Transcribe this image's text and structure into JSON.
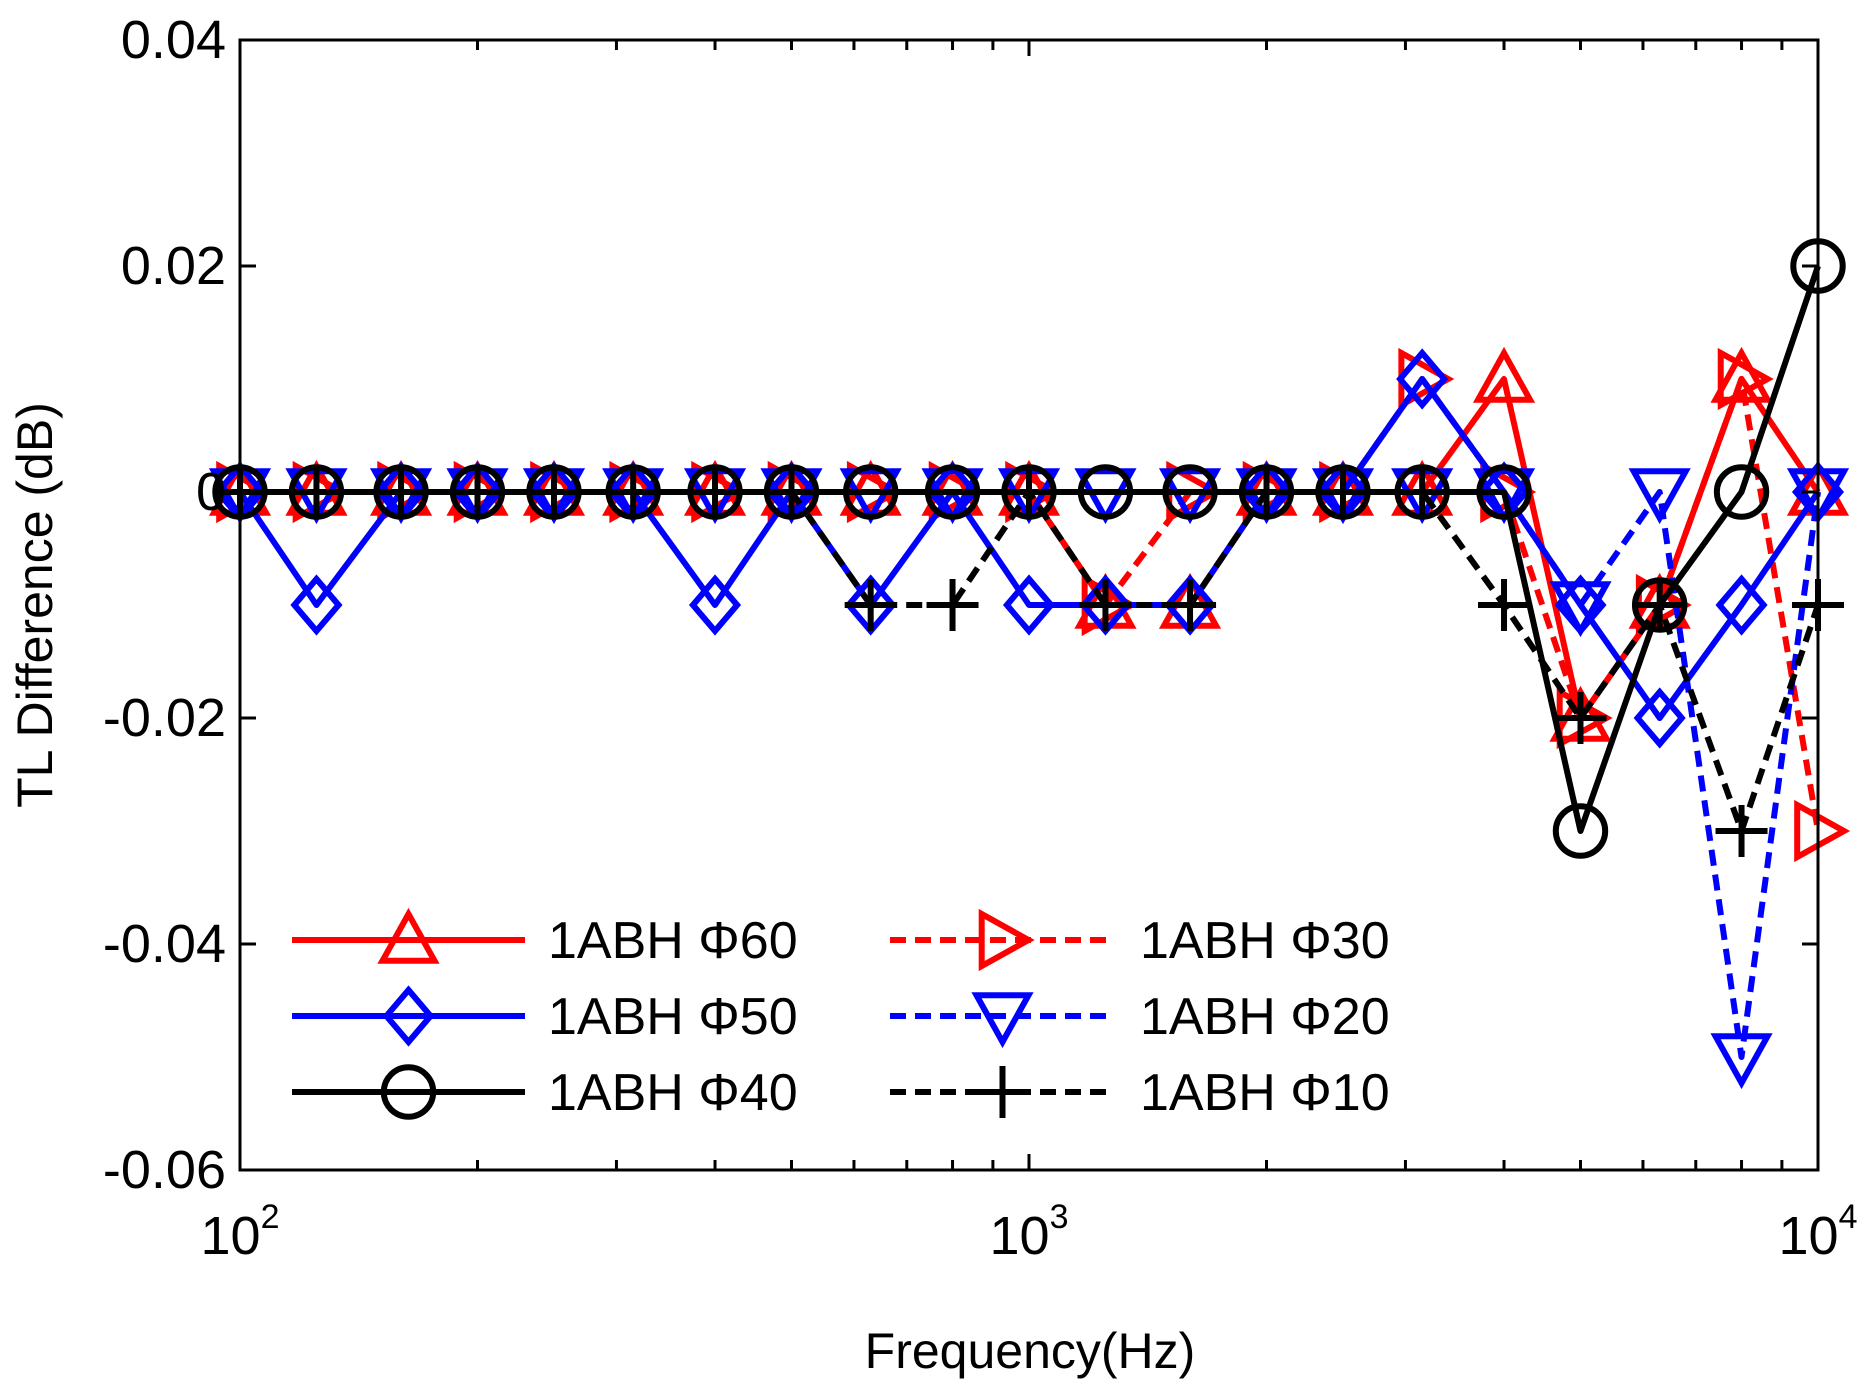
{
  "chart_data": {
    "type": "line",
    "title": "",
    "xlabel": "Frequency(Hz)",
    "ylabel": "TL Difference (dB)",
    "xscale": "log",
    "xlim": [
      100,
      10000
    ],
    "ylim": [
      -0.06,
      0.04
    ],
    "grid": false,
    "legend_position": "bottom-left",
    "x": [
      100,
      125,
      160,
      200,
      250,
      315,
      400,
      500,
      630,
      800,
      1000,
      1250,
      1600,
      2000,
      2500,
      3150,
      4000,
      5000,
      6300,
      8000,
      10000
    ],
    "y_ticks": [
      {
        "value": 0.04,
        "label": "0.04"
      },
      {
        "value": 0.02,
        "label": "0.02"
      },
      {
        "value": 0,
        "label": "0"
      },
      {
        "value": -0.02,
        "label": "-0.02"
      },
      {
        "value": -0.04,
        "label": "-0.04"
      },
      {
        "value": -0.06,
        "label": "-0.06"
      }
    ],
    "x_ticks": [
      {
        "value": 100,
        "base": "10",
        "exp": "2"
      },
      {
        "value": 1000,
        "base": "10",
        "exp": "3"
      },
      {
        "value": 10000,
        "base": "10",
        "exp": "4"
      }
    ],
    "series": [
      {
        "name": "1ABH Φ60",
        "color": "#ff0000",
        "dash": "solid",
        "marker": "triangle-up",
        "values": [
          0,
          0,
          0,
          0,
          0,
          0,
          0,
          0,
          0,
          0,
          0,
          -0.01,
          -0.01,
          0,
          0,
          0,
          0.01,
          -0.02,
          -0.01,
          0.01,
          0
        ]
      },
      {
        "name": "1ABH Φ30",
        "color": "#ff0000",
        "dash": "dashed",
        "marker": "triangle-right",
        "values": [
          0,
          0,
          0,
          0,
          0,
          0,
          0,
          0,
          0,
          0,
          0,
          -0.01,
          0,
          0,
          0,
          0.01,
          0,
          -0.02,
          -0.01,
          0.01,
          -0.03
        ]
      },
      {
        "name": "1ABH Φ50",
        "color": "#0000ff",
        "dash": "solid",
        "marker": "diamond",
        "values": [
          0,
          -0.01,
          0,
          0,
          0,
          0,
          -0.01,
          0,
          -0.01,
          0,
          -0.01,
          -0.01,
          -0.01,
          0,
          0,
          0.01,
          0,
          -0.01,
          -0.02,
          -0.01,
          0
        ]
      },
      {
        "name": "1ABH Φ20",
        "color": "#0000ff",
        "dash": "dashed",
        "marker": "triangle-down",
        "values": [
          0,
          0,
          0,
          0,
          0,
          0,
          0,
          0,
          0,
          0,
          0,
          0,
          0,
          0,
          0,
          0,
          0,
          -0.01,
          0,
          -0.05,
          0
        ]
      },
      {
        "name": "1ABH Φ40",
        "color": "#000000",
        "dash": "solid",
        "marker": "circle",
        "values": [
          0,
          0,
          0,
          0,
          0,
          0,
          0,
          0,
          0,
          0,
          0,
          0,
          0,
          0,
          0,
          0,
          0,
          -0.03,
          -0.01,
          0,
          0.02
        ]
      },
      {
        "name": "1ABH Φ10",
        "color": "#000000",
        "dash": "dashed",
        "marker": "plus",
        "values": [
          0,
          0,
          0,
          0,
          0,
          0,
          0,
          0,
          -0.01,
          -0.01,
          0,
          -0.01,
          -0.01,
          0,
          0,
          0,
          -0.01,
          -0.02,
          -0.01,
          -0.03,
          -0.01
        ]
      }
    ],
    "legend_order": [
      0,
      1,
      2,
      3,
      4,
      5
    ]
  }
}
